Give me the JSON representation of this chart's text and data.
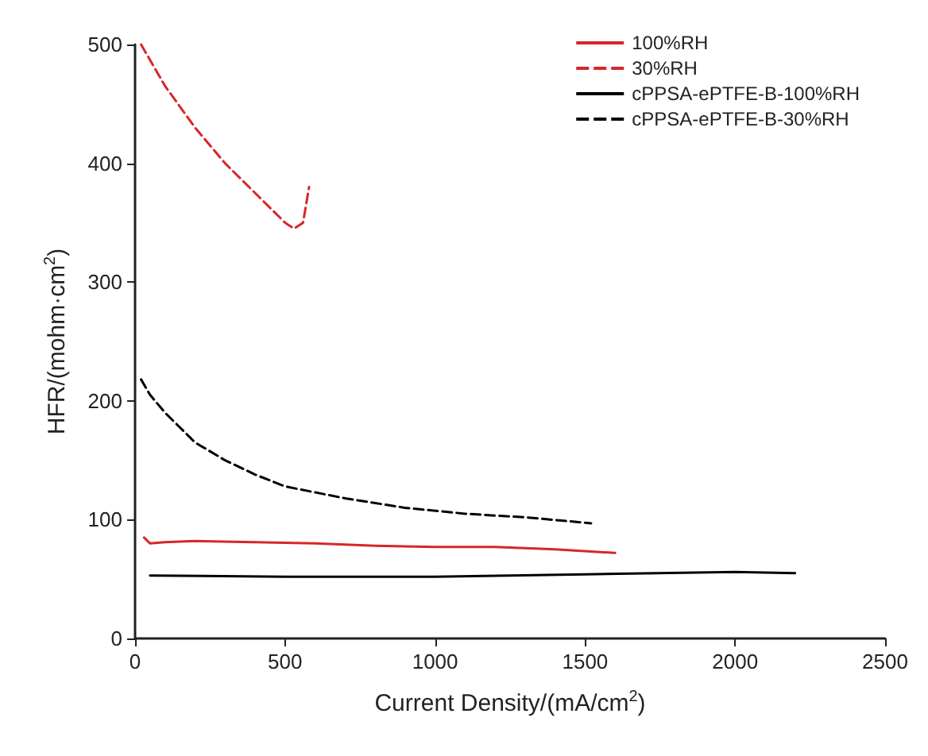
{
  "chart_data": {
    "type": "line",
    "xlabel": "Current Density/(mA/cm$^{2}$)",
    "ylabel": "HFR/(mohm·cm$^{2}$)",
    "xlim": [
      0,
      2500
    ],
    "xticks": [
      0,
      500,
      1000,
      1500,
      2000,
      2500
    ],
    "ylim": [
      0,
      500
    ],
    "yticks": [
      0,
      100,
      200,
      300,
      400,
      500
    ],
    "grid": false,
    "legend": "top right",
    "marker": "none",
    "series": [
      {
        "name": "100%RH",
        "color": "#d62728",
        "line_style": "solid",
        "x": [
          30,
          50,
          100,
          200,
          400,
          600,
          800,
          1000,
          1200,
          1400,
          1600
        ],
        "values": [
          85,
          80,
          81,
          82,
          81,
          80,
          78,
          77,
          77,
          75,
          72
        ]
      },
      {
        "name": "30%RH",
        "color": "#d62728",
        "line_style": "dashed",
        "x": [
          20,
          100,
          200,
          300,
          400,
          500,
          530,
          560,
          580
        ],
        "values": [
          500,
          465,
          430,
          400,
          375,
          350,
          345,
          350,
          380
        ]
      },
      {
        "name": "cPPSA-ePTFE-B-100%RH",
        "color": "#000000",
        "line_style": "solid",
        "x": [
          50,
          500,
          1000,
          1500,
          2000,
          2200
        ],
        "values": [
          53,
          52,
          52,
          54,
          56,
          55
        ]
      },
      {
        "name": "cPPSA-ePTFE-B-30%RH",
        "color": "#000000",
        "line_style": "dashed",
        "x": [
          20,
          50,
          100,
          200,
          300,
          400,
          500,
          700,
          900,
          1100,
          1300,
          1520
        ],
        "values": [
          218,
          205,
          190,
          165,
          150,
          138,
          128,
          118,
          110,
          105,
          102,
          97
        ]
      }
    ]
  }
}
